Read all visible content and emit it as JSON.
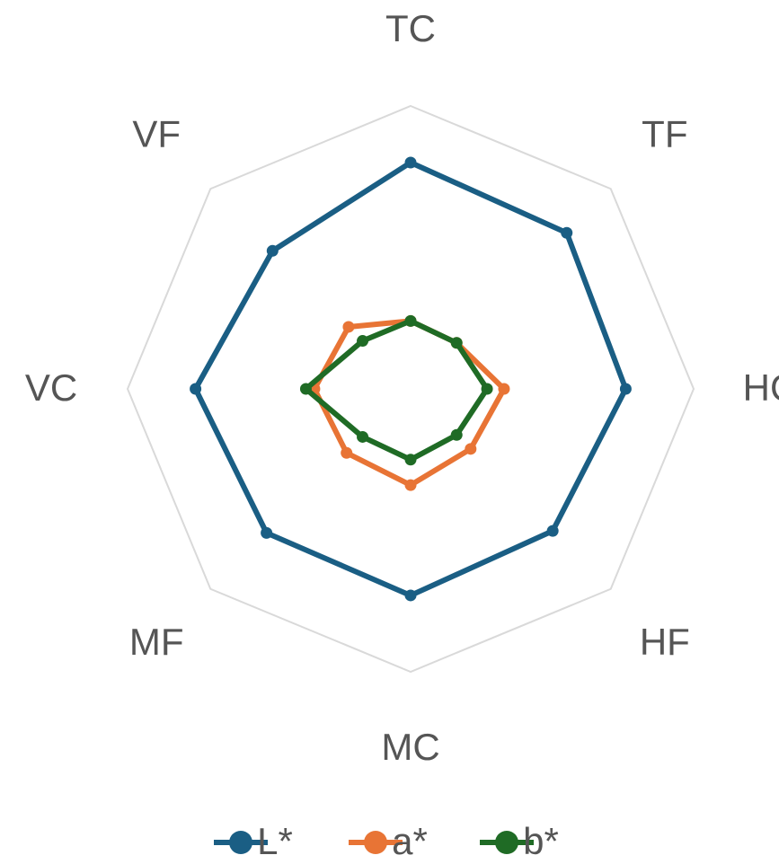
{
  "chart_data": {
    "type": "radar",
    "categories": [
      "TC",
      "TF",
      "HC",
      "HF",
      "MC",
      "MF",
      "VC",
      "VF"
    ],
    "rlim": [
      0,
      100
    ],
    "series": [
      {
        "name": "L*",
        "color": "#1a5e84",
        "values": [
          80,
          78,
          76,
          71,
          73,
          72,
          76,
          69
        ]
      },
      {
        "name": "a*",
        "color": "#e87435",
        "values": [
          24,
          23,
          33,
          30,
          34,
          32,
          34,
          31
        ]
      },
      {
        "name": "b*",
        "color": "#1f6b25",
        "values": [
          24,
          23,
          27,
          23,
          25,
          24,
          37,
          24
        ]
      }
    ]
  }
}
